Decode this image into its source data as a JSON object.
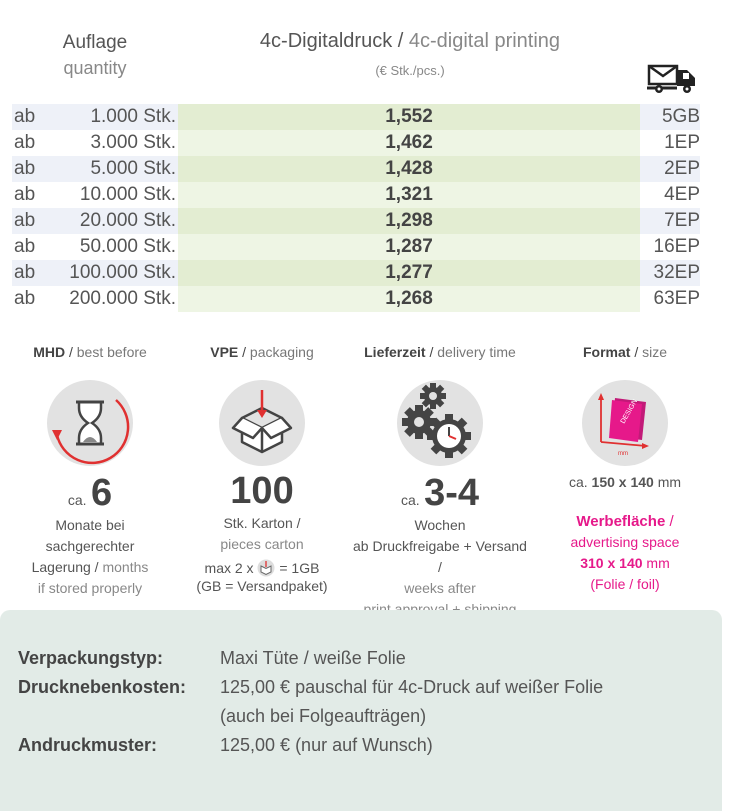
{
  "header": {
    "quantity_de": "Auflage",
    "quantity_en": "quantity",
    "print_de": "4c-Digitaldruck",
    "print_sep": " / ",
    "print_en": "4c-digital printing",
    "unit": "(€ Stk./pcs.)",
    "shipping_icon": "mail-truck-icon"
  },
  "price_table": {
    "rows": [
      {
        "prefix": "ab",
        "quantity": "1.000 Stk.",
        "price": "1,552",
        "shipping": "5GB"
      },
      {
        "prefix": "ab",
        "quantity": "3.000 Stk.",
        "price": "1,462",
        "shipping": "1EP"
      },
      {
        "prefix": "ab",
        "quantity": "5.000 Stk.",
        "price": "1,428",
        "shipping": "2EP"
      },
      {
        "prefix": "ab",
        "quantity": "10.000 Stk.",
        "price": "1,321",
        "shipping": "4EP"
      },
      {
        "prefix": "ab",
        "quantity": "20.000 Stk.",
        "price": "1,298",
        "shipping": "7EP"
      },
      {
        "prefix": "ab",
        "quantity": "50.000 Stk.",
        "price": "1,287",
        "shipping": "16EP"
      },
      {
        "prefix": "ab",
        "quantity": "100.000 Stk.",
        "price": "1,277",
        "shipping": "32EP"
      },
      {
        "prefix": "ab",
        "quantity": "200.000 Stk.",
        "price": "1,268",
        "shipping": "63EP"
      }
    ]
  },
  "mhd": {
    "title_de": "MHD",
    "title_en": "best before",
    "icon": "hourglass-icon",
    "ca": "ca.",
    "value": "6",
    "line1": "Monate bei",
    "line2": "sachgerechter",
    "line3_de": "Lagerung",
    "line3_en": "months",
    "line4": "if stored properly"
  },
  "vpe": {
    "title_de": "VPE",
    "title_en": "packaging",
    "icon": "box-icon",
    "value": "100",
    "line1": "Stk. Karton /",
    "line2": "pieces carton",
    "line3_a": "max 2 x",
    "line3_b": "= 1GB",
    "line4": "(GB = Versandpaket)"
  },
  "delivery": {
    "title_de": "Lieferzeit",
    "title_en": "delivery time",
    "icon": "gears-clock-icon",
    "ca": "ca.",
    "value": "3-4",
    "line1": "Wochen",
    "line2": "ab Druckfreigabe + Versand /",
    "line3": "weeks after",
    "line4": "print approval + shipping"
  },
  "format": {
    "title_de": "Format",
    "title_en": "size",
    "icon": "format-bag-icon",
    "design_label": "DESIGN",
    "mm_label": "mm",
    "size_ca": "ca.",
    "size_value": "150 x 140",
    "size_unit": "mm",
    "ad_de": "Werbefläche",
    "ad_en": "advertising space",
    "ad_value": "310 x 140",
    "ad_unit": "mm",
    "ad_note": "(Folie / foil)"
  },
  "details": {
    "packaging_label": "Verpackungstyp:",
    "packaging_value": "Maxi Tüte / weiße Folie",
    "extra_cost_label": "Drucknebenkosten:",
    "extra_cost_value_1": "125,00 € pauschal für 4c-Druck auf weißer Folie",
    "extra_cost_value_2": "(auch bei Folgeaufträgen)",
    "proof_label": "Andruckmuster:",
    "proof_value": "125,00 € (nur auf Wunsch)"
  },
  "colors": {
    "accent_pink": "#e6198a",
    "arrow_red": "#e03030",
    "row_blue": "#eef1f8",
    "price_green": "#e3edd2",
    "panel_bg": "#e2ebe7"
  }
}
